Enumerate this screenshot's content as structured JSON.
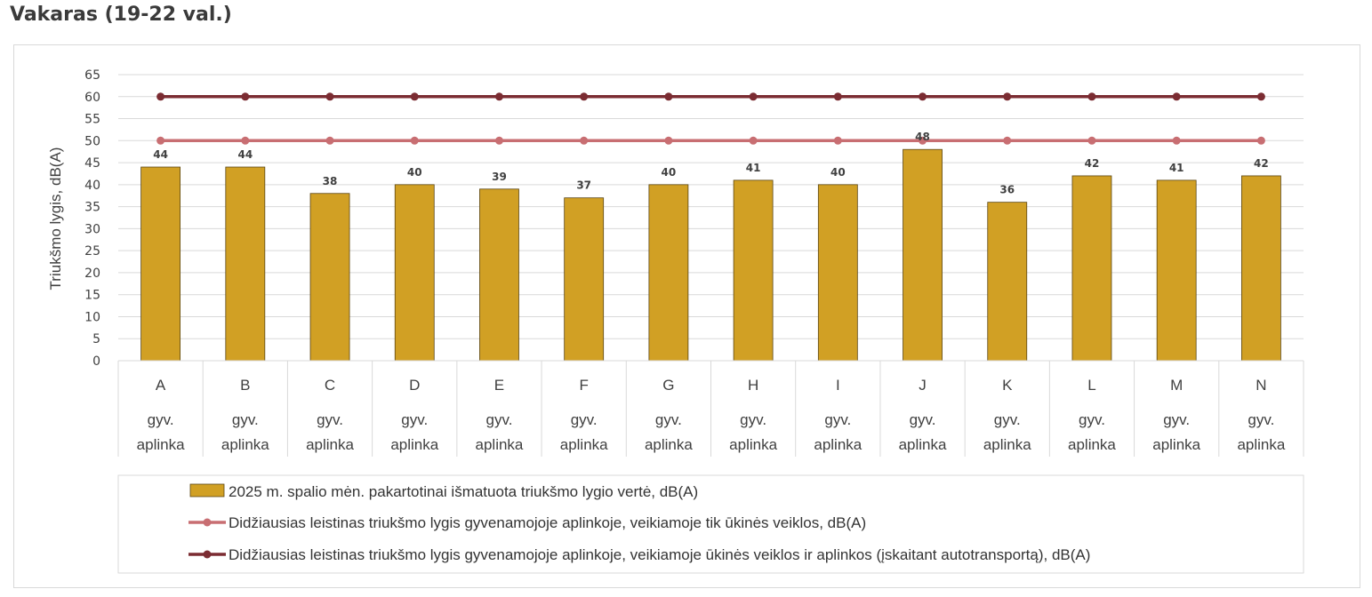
{
  "page": {
    "title": "Vakaras (19-22 val.)"
  },
  "chart_data": {
    "type": "bar",
    "categories": [
      "A",
      "B",
      "C",
      "D",
      "E",
      "F",
      "G",
      "H",
      "I",
      "J",
      "K",
      "L",
      "M",
      "N"
    ],
    "subcategory_label": "gyv. aplinka",
    "series": [
      {
        "name": "2025 m. spalio mėn. pakartotinai išmatuota triukšmo lygio vertė, dB(A)",
        "kind": "bar",
        "color": "#d1a024",
        "values": [
          44,
          44,
          38,
          40,
          39,
          37,
          40,
          41,
          40,
          48,
          36,
          42,
          41,
          42
        ]
      },
      {
        "name": "Didžiausias leistinas triukšmo lygis gyvenamojoje aplinkoje, veikiamoje tik ūkinės veiklos,  dB(A)",
        "kind": "line",
        "color": "#c86e72",
        "values": [
          50,
          50,
          50,
          50,
          50,
          50,
          50,
          50,
          50,
          50,
          50,
          50,
          50,
          50
        ]
      },
      {
        "name": "Didžiausias leistinas triukšmo lygis gyvenamojoje aplinkoje, veikiamoje ūkinės veiklos ir aplinkos (įskaitant autotransportą),  dB(A)",
        "kind": "line",
        "color": "#7b2c32",
        "values": [
          60,
          60,
          60,
          60,
          60,
          60,
          60,
          60,
          60,
          60,
          60,
          60,
          60,
          60
        ]
      }
    ],
    "ylabel": "Triukšmo lygis, dB(A)",
    "ylim": [
      0,
      65
    ],
    "yticks": [
      0,
      5,
      10,
      15,
      20,
      25,
      30,
      35,
      40,
      45,
      50,
      55,
      60,
      65
    ],
    "grid": true,
    "legend_position": "bottom"
  }
}
